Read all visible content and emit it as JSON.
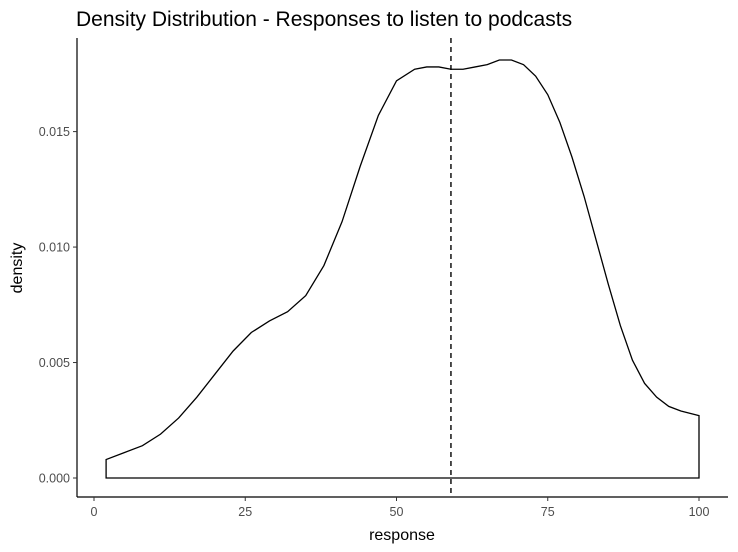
{
  "chart_data": {
    "type": "area",
    "title": "Density Distribution - Responses to listen to podcasts",
    "xlabel": "response",
    "ylabel": "density",
    "xlim": [
      0,
      100
    ],
    "ylim": [
      0,
      0.0185
    ],
    "x_ticks": [
      {
        "value": 0,
        "label": "0"
      },
      {
        "value": 25,
        "label": "25"
      },
      {
        "value": 50,
        "label": "50"
      },
      {
        "value": 75,
        "label": "75"
      },
      {
        "value": 100,
        "label": "100"
      }
    ],
    "y_ticks": [
      {
        "value": 0.0,
        "label": "0.000"
      },
      {
        "value": 0.005,
        "label": "0.005"
      },
      {
        "value": 0.01,
        "label": "0.010"
      },
      {
        "value": 0.015,
        "label": "0.015"
      }
    ],
    "grid": false,
    "legend": "none",
    "line_color": "#000000",
    "reference_line": {
      "style": "dashed",
      "x": 59
    },
    "series": [
      {
        "x": [
          2,
          5,
          8,
          11,
          14,
          17,
          20,
          23,
          26,
          29,
          32,
          35,
          38,
          41,
          44,
          47,
          50,
          53,
          55,
          57,
          59,
          61,
          63,
          65,
          67,
          69,
          71,
          73,
          75,
          77,
          79,
          81,
          83,
          85,
          87,
          89,
          91,
          93,
          95,
          97,
          100
        ],
        "y": [
          0.0008,
          0.0011,
          0.0014,
          0.0019,
          0.0026,
          0.0035,
          0.0045,
          0.0055,
          0.0063,
          0.0068,
          0.0072,
          0.0079,
          0.0092,
          0.0111,
          0.0135,
          0.0157,
          0.0172,
          0.0177,
          0.0178,
          0.0178,
          0.0177,
          0.0177,
          0.0178,
          0.0179,
          0.0181,
          0.0181,
          0.0179,
          0.0174,
          0.0166,
          0.0154,
          0.0139,
          0.0122,
          0.0103,
          0.0084,
          0.0066,
          0.0051,
          0.0041,
          0.0035,
          0.0031,
          0.0029,
          0.0027
        ]
      }
    ]
  }
}
